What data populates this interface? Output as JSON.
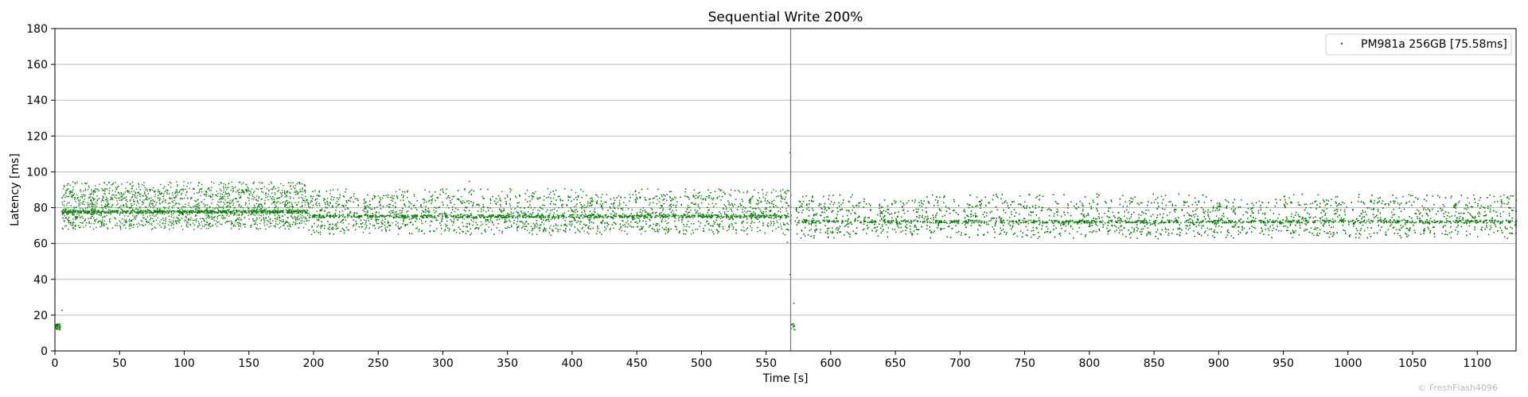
{
  "chart_data": {
    "type": "scatter",
    "title": "Sequential Write 200%",
    "xlabel": "Time [s]",
    "ylabel": "Latency [ms]",
    "xlim": [
      0,
      1130
    ],
    "ylim": [
      0,
      180
    ],
    "x_ticks": [
      0,
      50,
      100,
      150,
      200,
      250,
      300,
      350,
      400,
      450,
      500,
      550,
      600,
      650,
      700,
      750,
      800,
      850,
      900,
      950,
      1000,
      1050,
      1100
    ],
    "y_ticks": [
      0,
      20,
      40,
      60,
      80,
      100,
      120,
      140,
      160,
      180
    ],
    "grid": "horizontal",
    "legend_position": "top-right",
    "vertical_line_x": 569,
    "series": [
      {
        "name": "PM981a 256GB [75.58ms]",
        "color": "#008000",
        "marker": "point",
        "phases": [
          {
            "x_range": [
              0,
              4
            ],
            "center": 14.5,
            "spread_low": 13.5,
            "spread_high": 15.5,
            "count": 40
          },
          {
            "x_range": [
              5,
              195
            ],
            "center": 78,
            "spread_low": 68,
            "spread_high": 95,
            "count": 2400
          },
          {
            "x_range": [
              195,
              569
            ],
            "center": 75.5,
            "spread_low": 65,
            "spread_high": 91,
            "count": 4600
          },
          {
            "x_range": [
              569,
              572
            ],
            "center": 15,
            "spread_low": 13.5,
            "spread_high": 16,
            "count": 12
          },
          {
            "x_range": [
              572,
              1130
            ],
            "center": 72.5,
            "spread_low": 63,
            "spread_high": 88,
            "count": 6800
          }
        ],
        "outliers": [
          {
            "x": 5,
            "y": 23
          },
          {
            "x": 320,
            "y": 95
          },
          {
            "x": 568,
            "y": 111
          },
          {
            "x": 566,
            "y": 61
          },
          {
            "x": 568,
            "y": 43
          },
          {
            "x": 571,
            "y": 27
          },
          {
            "x": 6,
            "y": 77
          }
        ]
      }
    ]
  },
  "watermark": "© FreshFlash4096"
}
